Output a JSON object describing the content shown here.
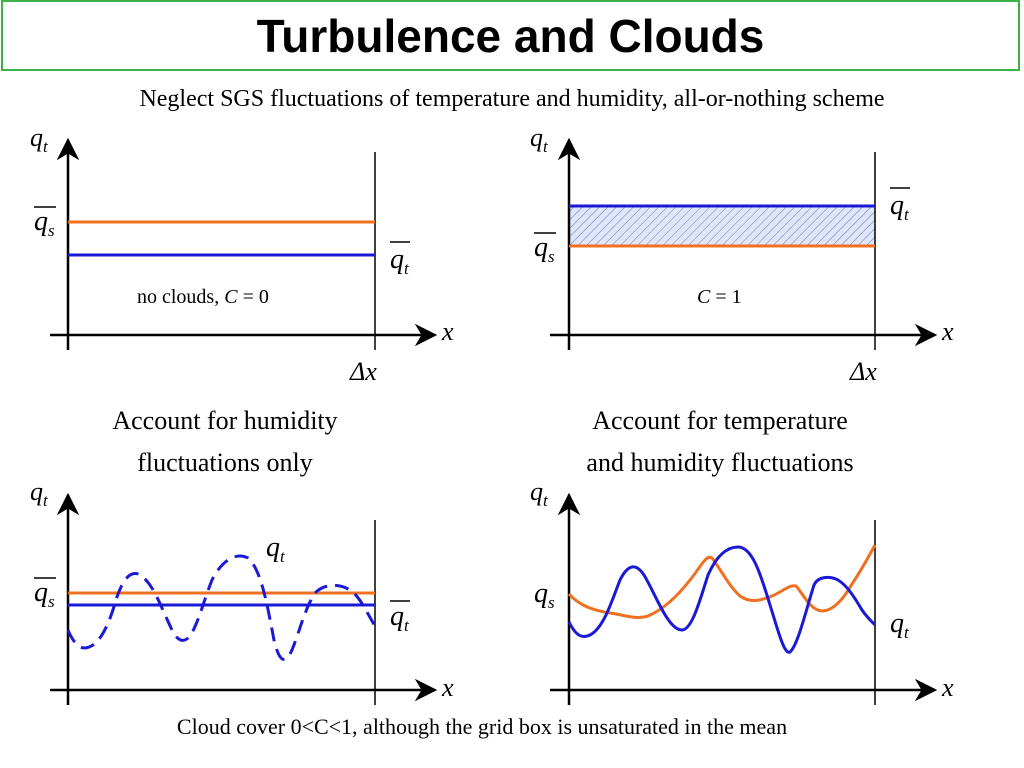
{
  "title": "Turbulence and Clouds",
  "subtitle": "Neglect SGS fluctuations of temperature and humidity, all-or-nothing scheme",
  "captions": {
    "bottom_left": [
      "Account for humidity",
      "fluctuations only"
    ],
    "bottom_right": [
      "Account for temperature",
      "and humidity fluctuations"
    ]
  },
  "footer": "Cloud cover 0<C<1, although the grid box is unsaturated in the mean",
  "labels": {
    "y_axis": "q",
    "y_axis_sub": "t",
    "x_axis": "x",
    "delta_x": "Δx",
    "qs": "q",
    "qs_sub": "s",
    "qt": "q",
    "qt_sub": "t"
  },
  "panel_texts": {
    "no_clouds_prefix": "no clouds, ",
    "c_symbol": "C",
    "no_clouds_value": " = 0",
    "cloudy_value": " = 1"
  },
  "colors": {
    "qs_line": "#f07020",
    "qt_line": "#1a1ad6",
    "axis": "#000000",
    "title_border": "#3bb34a",
    "hatch": "#1a1ad6"
  },
  "chart_data": [
    {
      "type": "line",
      "panel": "top-left",
      "series": [
        {
          "name": "q̄s",
          "values": [
            0.62,
            0.62
          ]
        },
        {
          "name": "q̄t",
          "values": [
            0.5,
            0.5
          ]
        }
      ],
      "annotation": "no clouds, C = 0"
    },
    {
      "type": "area",
      "panel": "top-right",
      "series": [
        {
          "name": "q̄t",
          "values": [
            0.68,
            0.68
          ]
        },
        {
          "name": "q̄s",
          "values": [
            0.55,
            0.55
          ]
        }
      ],
      "annotation": "C = 1"
    },
    {
      "type": "line",
      "panel": "bottom-left",
      "series": [
        {
          "name": "q̄s",
          "values": [
            0.5,
            0.5
          ]
        },
        {
          "name": "q̄t",
          "values": [
            0.45,
            0.45
          ]
        },
        {
          "name": "qt",
          "style": "dashed"
        }
      ]
    },
    {
      "type": "line",
      "panel": "bottom-right",
      "series": [
        {
          "name": "qs"
        },
        {
          "name": "qt"
        }
      ]
    }
  ]
}
